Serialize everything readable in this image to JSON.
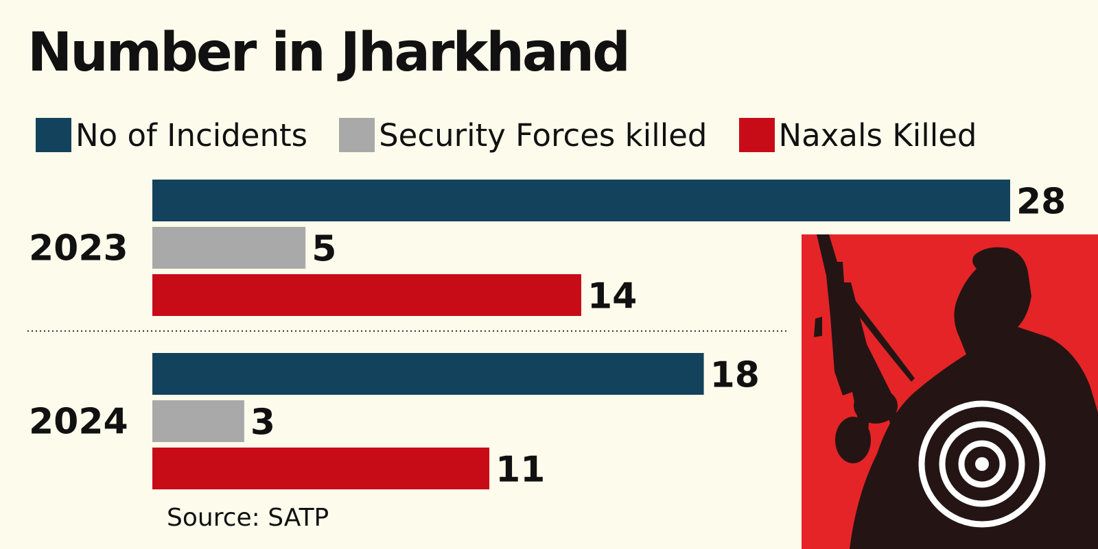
{
  "title": "Number in Jharkhand",
  "source": "Source: SATP",
  "colors": {
    "background": "#fdfcec",
    "incidents": "#13435c",
    "security_forces": "#a9a9a9",
    "naxals": "#c70c18",
    "illustration_bg": "#e52427",
    "silhouette": "#241514"
  },
  "chart_data": {
    "type": "bar",
    "orientation": "horizontal",
    "title": "Number in Jharkhand",
    "categories": [
      "2023",
      "2024"
    ],
    "series": [
      {
        "name": "No of Incidents",
        "values": [
          28,
          18
        ]
      },
      {
        "name": "Security Forces killed",
        "values": [
          5,
          3
        ]
      },
      {
        "name": "Naxals Killed",
        "values": [
          14,
          11
        ]
      }
    ],
    "xlim": [
      0,
      28
    ],
    "grid": false,
    "legend": "top-left",
    "data_labels": true
  },
  "illustration": {
    "icon": "armed-silhouette-with-target-icon"
  }
}
